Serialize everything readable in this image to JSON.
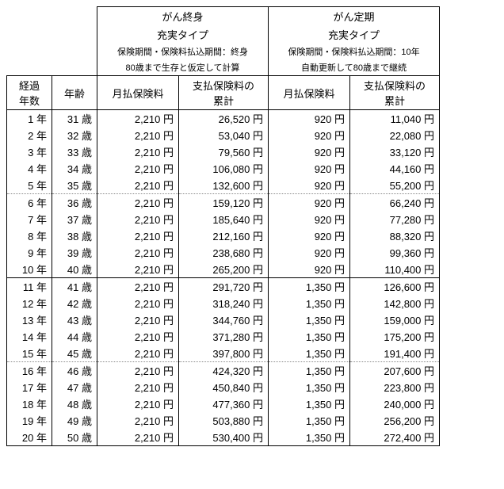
{
  "header": {
    "plan1": {
      "title_line1": "がん終身",
      "title_line2": "充実タイプ",
      "subtitle1": "保険期間・保険料払込期間：終身",
      "subtitle2": "80歳まで生存と仮定して計算"
    },
    "plan2": {
      "title_line1": "がん定期",
      "title_line2": "充実タイプ",
      "subtitle1": "保険期間・保険料払込期間：10年",
      "subtitle2": "自動更新して80歳まで継続"
    },
    "col_years": "経過\n年数",
    "col_age": "年齢",
    "col_monthly": "月払保険料",
    "col_cumulative": "支払保険料の\n累計"
  },
  "units": {
    "year": "年",
    "age": "歳",
    "yen": "円"
  },
  "rows": [
    {
      "y": 1,
      "a": 31,
      "p1": 2210,
      "c1": 26520,
      "p2": 920,
      "c2": 11040
    },
    {
      "y": 2,
      "a": 32,
      "p1": 2210,
      "c1": 53040,
      "p2": 920,
      "c2": 22080
    },
    {
      "y": 3,
      "a": 33,
      "p1": 2210,
      "c1": 79560,
      "p2": 920,
      "c2": 33120
    },
    {
      "y": 4,
      "a": 34,
      "p1": 2210,
      "c1": 106080,
      "p2": 920,
      "c2": 44160
    },
    {
      "y": 5,
      "a": 35,
      "p1": 2210,
      "c1": 132600,
      "p2": 920,
      "c2": 55200,
      "sep": "dotted"
    },
    {
      "y": 6,
      "a": 36,
      "p1": 2210,
      "c1": 159120,
      "p2": 920,
      "c2": 66240
    },
    {
      "y": 7,
      "a": 37,
      "p1": 2210,
      "c1": 185640,
      "p2": 920,
      "c2": 77280
    },
    {
      "y": 8,
      "a": 38,
      "p1": 2210,
      "c1": 212160,
      "p2": 920,
      "c2": 88320
    },
    {
      "y": 9,
      "a": 39,
      "p1": 2210,
      "c1": 238680,
      "p2": 920,
      "c2": 99360
    },
    {
      "y": 10,
      "a": 40,
      "p1": 2210,
      "c1": 265200,
      "p2": 920,
      "c2": 110400,
      "sep": "solid"
    },
    {
      "y": 11,
      "a": 41,
      "p1": 2210,
      "c1": 291720,
      "p2": 1350,
      "c2": 126600
    },
    {
      "y": 12,
      "a": 42,
      "p1": 2210,
      "c1": 318240,
      "p2": 1350,
      "c2": 142800
    },
    {
      "y": 13,
      "a": 43,
      "p1": 2210,
      "c1": 344760,
      "p2": 1350,
      "c2": 159000
    },
    {
      "y": 14,
      "a": 44,
      "p1": 2210,
      "c1": 371280,
      "p2": 1350,
      "c2": 175200
    },
    {
      "y": 15,
      "a": 45,
      "p1": 2210,
      "c1": 397800,
      "p2": 1350,
      "c2": 191400,
      "sep": "dotted"
    },
    {
      "y": 16,
      "a": 46,
      "p1": 2210,
      "c1": 424320,
      "p2": 1350,
      "c2": 207600
    },
    {
      "y": 17,
      "a": 47,
      "p1": 2210,
      "c1": 450840,
      "p2": 1350,
      "c2": 223800
    },
    {
      "y": 18,
      "a": 48,
      "p1": 2210,
      "c1": 477360,
      "p2": 1350,
      "c2": 240000
    },
    {
      "y": 19,
      "a": 49,
      "p1": 2210,
      "c1": 503880,
      "p2": 1350,
      "c2": 256200
    },
    {
      "y": 20,
      "a": 50,
      "p1": 2210,
      "c1": 530400,
      "p2": 1350,
      "c2": 272400,
      "sep": "solid"
    }
  ]
}
